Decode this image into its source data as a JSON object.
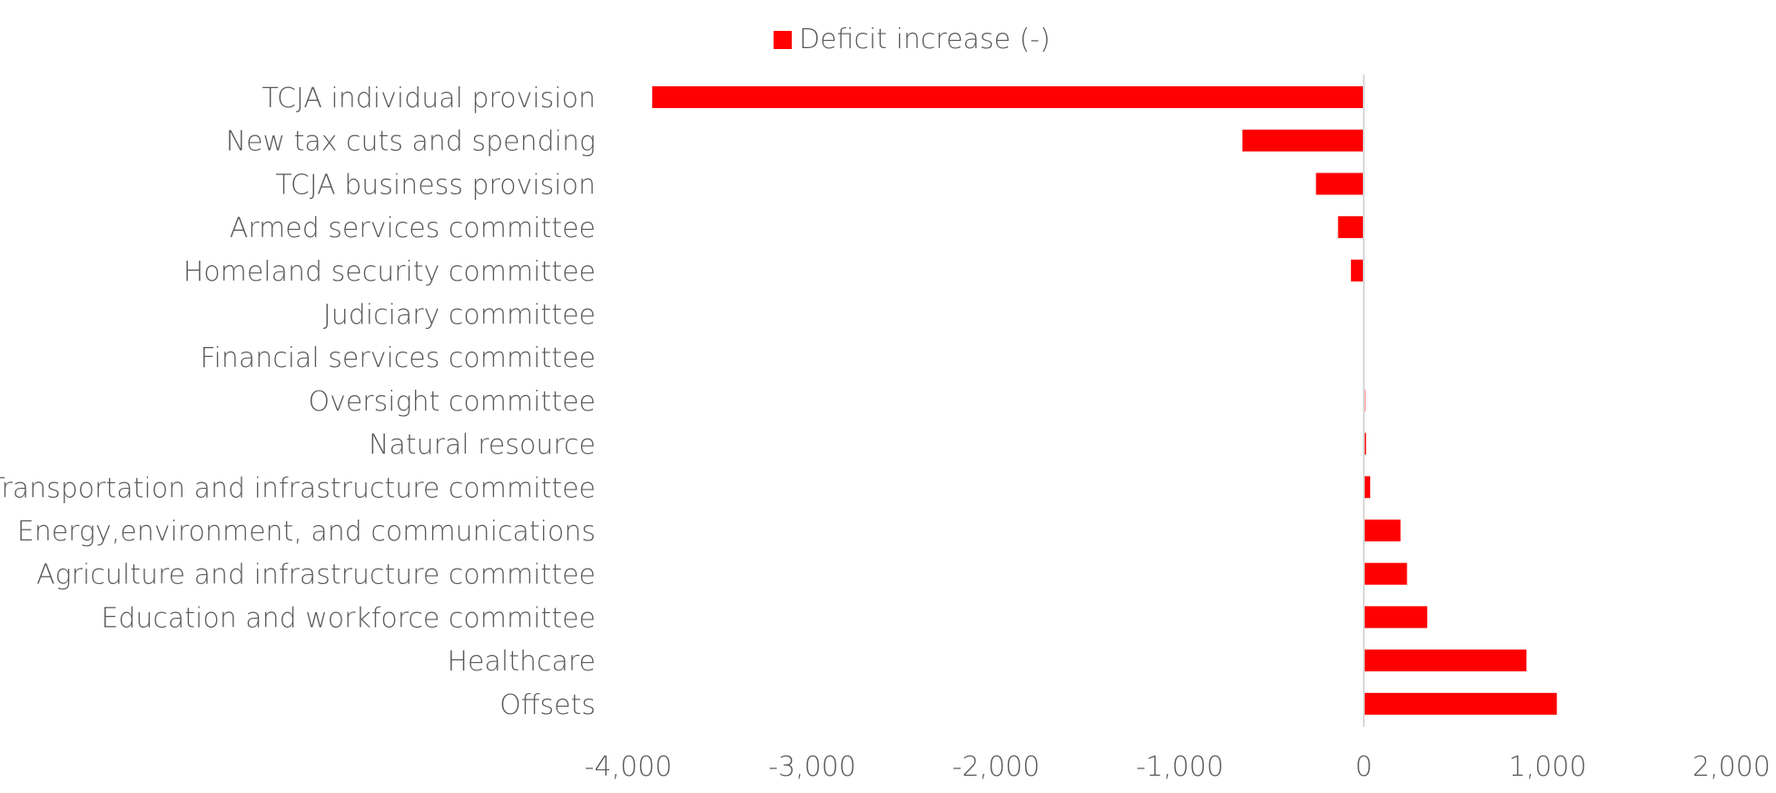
{
  "chart_data": {
    "type": "bar",
    "orientation": "horizontal",
    "title": "",
    "xlabel": "",
    "ylabel": "",
    "xlim": [
      -4000,
      2000
    ],
    "x_ticks": [
      -4000,
      -3000,
      -2000,
      -1000,
      0,
      1000,
      2000
    ],
    "x_tick_labels": [
      "-4,000",
      "-3,000",
      "-2,000",
      "-1,000",
      "0",
      "1,000",
      "2,000"
    ],
    "grid": false,
    "legend_position": "top-center",
    "categories": [
      "TCJA individual provision",
      "New tax cuts and spending",
      "TCJA business provision",
      "Armed services committee",
      "Homeland security committee",
      "Judiciary committee",
      "Financial services committee",
      "Oversight committee",
      "Natural resource",
      "Transportation and infrastructure committee",
      "Energy,environment, and communications",
      "Agriculture and infrastructure committee",
      "Education and workforce committee",
      "Healthcare",
      "Offsets"
    ],
    "series": [
      {
        "name": "Deficit increase (-)",
        "color": "#ff0000",
        "values": [
          -3870,
          -660,
          -260,
          -140,
          -70,
          0,
          3,
          7,
          12,
          35,
          200,
          235,
          345,
          885,
          1050
        ]
      }
    ],
    "zero_line_color": "#d9d9d9"
  }
}
